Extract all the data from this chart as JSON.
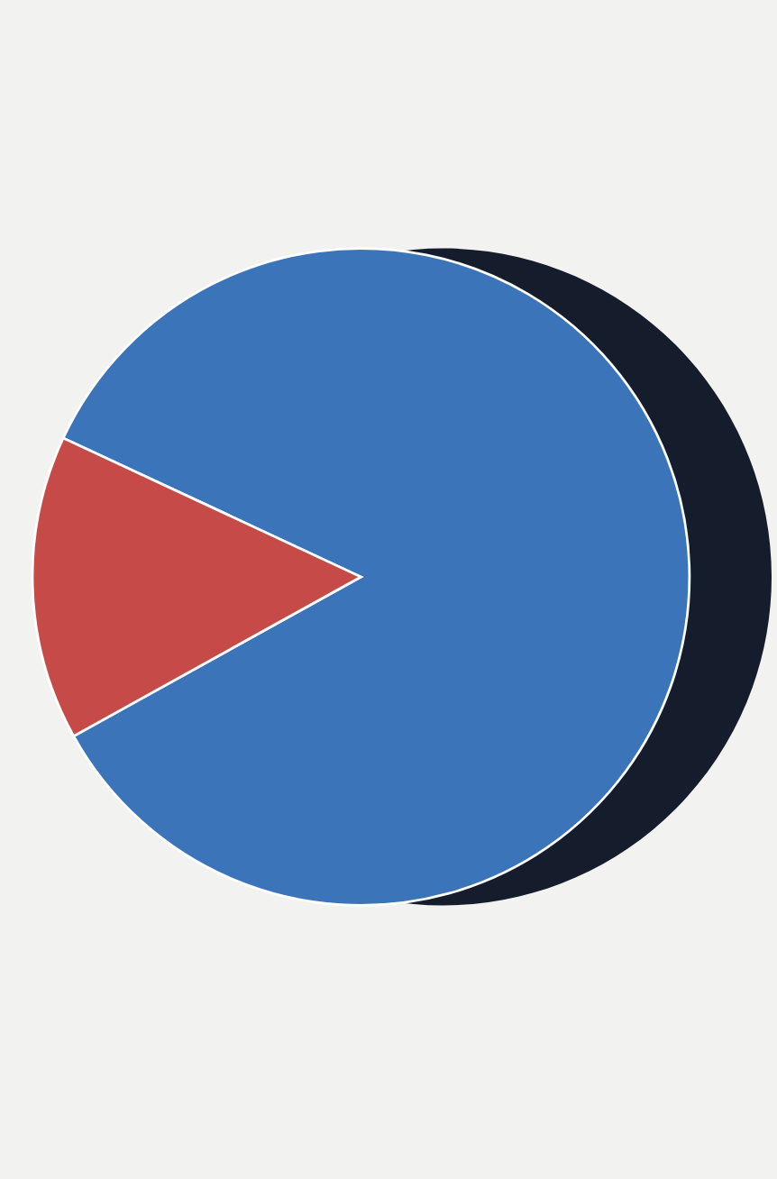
{
  "chart_data": {
    "type": "pie",
    "categories": [
      null,
      null
    ],
    "values": [
      85,
      15
    ],
    "colors": [
      "#3b74b8",
      "#c64a48"
    ]
  }
}
